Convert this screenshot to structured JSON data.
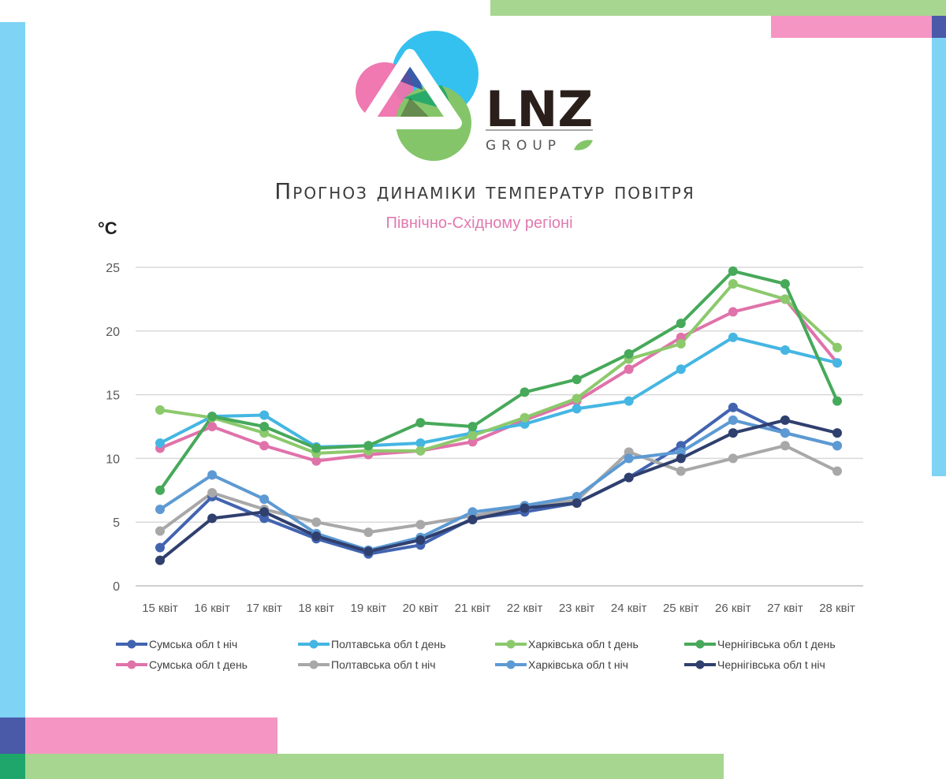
{
  "brand": {
    "name": "LNZ",
    "sub": "GROUP",
    "colors": {
      "blue": "#34c1ef",
      "pink": "#ee72ac",
      "green": "#84c56a",
      "navy": "#3b4a9c",
      "dark": "#2a1f1a"
    }
  },
  "decor_colors": {
    "green": "#a6d68f",
    "pink": "#f595c4",
    "blue": "#7fd3f4",
    "navy": "#4a5aa8",
    "teal": "#1fa66a"
  },
  "chart_data": {
    "type": "line",
    "title": "Прогноз динаміки температур повітря",
    "subtitle": "Північно-Східному регіоні",
    "ylabel": "°C",
    "xlabel": "",
    "ylim": [
      0,
      25
    ],
    "yticks": [
      0,
      5,
      10,
      15,
      20,
      25
    ],
    "grid": true,
    "legend_position": "bottom",
    "categories": [
      "15 квіт",
      "16 квіт",
      "17 квіт",
      "18 квіт",
      "19 квіт",
      "20 квіт",
      "21 квіт",
      "22 квіт",
      "23 квіт",
      "24 квіт",
      "25 квіт",
      "26 квіт",
      "27 квіт",
      "28 квіт"
    ],
    "series": [
      {
        "name": "Сумська обл t ніч",
        "color": "#4264b0",
        "values": [
          3.0,
          7.0,
          5.3,
          3.7,
          2.5,
          3.2,
          5.3,
          5.8,
          6.5,
          8.5,
          11.0,
          14.0,
          12.0,
          11.0
        ]
      },
      {
        "name": "Сумська обл t день",
        "color": "#e072aa",
        "values": [
          10.8,
          12.5,
          11.0,
          9.8,
          10.3,
          10.6,
          11.3,
          13.0,
          14.5,
          17.0,
          19.5,
          21.5,
          22.5,
          17.5
        ]
      },
      {
        "name": "Полтавська обл t день",
        "color": "#45b6e2",
        "values": [
          11.2,
          13.3,
          13.4,
          10.9,
          11.0,
          11.2,
          12.0,
          12.7,
          13.9,
          14.5,
          17.0,
          19.5,
          18.5,
          17.5
        ]
      },
      {
        "name": "Полтавська обл t ніч",
        "color": "#a8a8a8",
        "values": [
          4.3,
          7.3,
          6.0,
          5.0,
          4.2,
          4.8,
          5.5,
          6.2,
          6.7,
          10.5,
          9.0,
          10.0,
          11.0,
          9.0
        ]
      },
      {
        "name": "Харківська обл t день",
        "color": "#8cc96c",
        "values": [
          13.8,
          13.2,
          12.0,
          10.4,
          10.6,
          10.6,
          11.8,
          13.2,
          14.7,
          17.8,
          19.0,
          23.7,
          22.5,
          18.7
        ]
      },
      {
        "name": "Харківська обл t ніч",
        "color": "#5d9ad3",
        "values": [
          6.0,
          8.7,
          6.8,
          4.1,
          2.8,
          3.8,
          5.8,
          6.3,
          7.0,
          10.0,
          10.5,
          13.0,
          12.0,
          11.0
        ]
      },
      {
        "name": "Чернігівська обл t день",
        "color": "#47a95a",
        "values": [
          7.5,
          13.3,
          12.5,
          10.8,
          11.0,
          12.8,
          12.5,
          15.2,
          16.2,
          18.2,
          20.6,
          24.7,
          23.7,
          14.5
        ]
      },
      {
        "name": "Чернігівська обл t ніч",
        "color": "#2f3f6e",
        "values": [
          2.0,
          5.3,
          5.8,
          3.9,
          2.7,
          3.6,
          5.2,
          6.1,
          6.5,
          8.5,
          10.0,
          12.0,
          13.0,
          12.0
        ]
      }
    ]
  }
}
